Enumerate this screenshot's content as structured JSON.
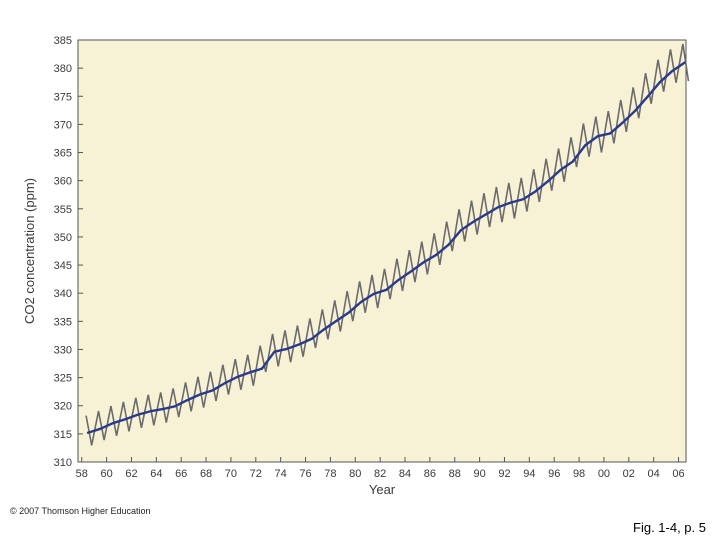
{
  "chart_data": {
    "type": "line",
    "title": "",
    "xlabel": "Year",
    "ylabel": "CO2 concentration (ppm)",
    "xlim": [
      1957.7,
      2006.6
    ],
    "ylim": [
      310,
      385
    ],
    "x_ticks": [
      1958,
      1960,
      1962,
      1964,
      1966,
      1968,
      1970,
      1972,
      1974,
      1976,
      1978,
      1980,
      1982,
      1984,
      1986,
      1988,
      1990,
      1992,
      1994,
      1996,
      1998,
      2000,
      2002,
      2004,
      2006
    ],
    "x_tick_labels": [
      "58",
      "60",
      "62",
      "64",
      "66",
      "68",
      "70",
      "72",
      "74",
      "76",
      "78",
      "80",
      "82",
      "84",
      "86",
      "88",
      "90",
      "92",
      "94",
      "96",
      "98",
      "00",
      "02",
      "04",
      "06"
    ],
    "y_ticks": [
      310,
      315,
      320,
      325,
      330,
      335,
      340,
      345,
      350,
      355,
      360,
      365,
      370,
      375,
      380,
      385
    ],
    "grid": false,
    "legend": false,
    "plot_background": "#f7f2d6",
    "series": [
      {
        "color": "#6b6b6b",
        "kind": "seasonal",
        "x": [
          1958,
          1959,
          1960,
          1961,
          1962,
          1963,
          1964,
          1965,
          1966,
          1967,
          1968,
          1969,
          1970,
          1971,
          1972,
          1973,
          1974,
          1975,
          1976,
          1977,
          1978,
          1979,
          1980,
          1981,
          1982,
          1983,
          1984,
          1985,
          1986,
          1987,
          1988,
          1989,
          1990,
          1991,
          1992,
          1993,
          1994,
          1995,
          1996,
          1997,
          1998,
          1999,
          2000,
          2001,
          2002,
          2003,
          2004,
          2005,
          2006
        ],
        "amplitude": [
          2.8,
          2.8,
          2.8,
          2.8,
          2.8,
          2.8,
          2.8,
          2.8,
          2.8,
          2.9,
          2.9,
          2.9,
          2.9,
          2.9,
          3.0,
          3.0,
          3.0,
          3.0,
          3.0,
          3.0,
          3.1,
          3.1,
          3.1,
          3.1,
          3.1,
          3.2,
          3.2,
          3.2,
          3.2,
          3.2,
          3.2,
          3.3,
          3.3,
          3.3,
          3.3,
          3.3,
          3.3,
          3.3,
          3.3,
          3.3,
          3.3,
          3.3,
          3.3,
          3.3,
          3.3,
          3.3,
          3.3,
          3.3,
          3.3
        ]
      },
      {
        "color": "#2b3a8a",
        "kind": "annual-mean",
        "x": [
          1958,
          1959,
          1960,
          1961,
          1962,
          1963,
          1964,
          1965,
          1966,
          1967,
          1968,
          1969,
          1970,
          1971,
          1972,
          1973,
          1974,
          1975,
          1976,
          1977,
          1978,
          1979,
          1980,
          1981,
          1982,
          1983,
          1984,
          1985,
          1986,
          1987,
          1988,
          1989,
          1990,
          1991,
          1992,
          1993,
          1994,
          1995,
          1996,
          1997,
          1998,
          1999,
          2000,
          2001,
          2002,
          2003,
          2004,
          2005,
          2006
        ],
        "y": [
          315.2,
          315.9,
          316.9,
          317.6,
          318.4,
          319.0,
          319.4,
          319.9,
          321.0,
          322.0,
          322.7,
          324.0,
          325.1,
          325.9,
          326.6,
          329.6,
          330.1,
          330.9,
          331.9,
          333.6,
          335.1,
          336.6,
          338.5,
          339.9,
          340.6,
          342.4,
          343.9,
          345.5,
          346.8,
          348.6,
          351.2,
          352.7,
          354.0,
          355.3,
          356.1,
          356.7,
          358.1,
          359.9,
          361.9,
          363.4,
          366.3,
          367.9,
          368.4,
          370.3,
          372.4,
          374.9,
          377.5,
          379.5,
          381.0
        ]
      }
    ]
  },
  "footer": {
    "copyright": "© 2007 Thomson Higher Education",
    "caption": "Fig. 1-4, p. 5"
  }
}
